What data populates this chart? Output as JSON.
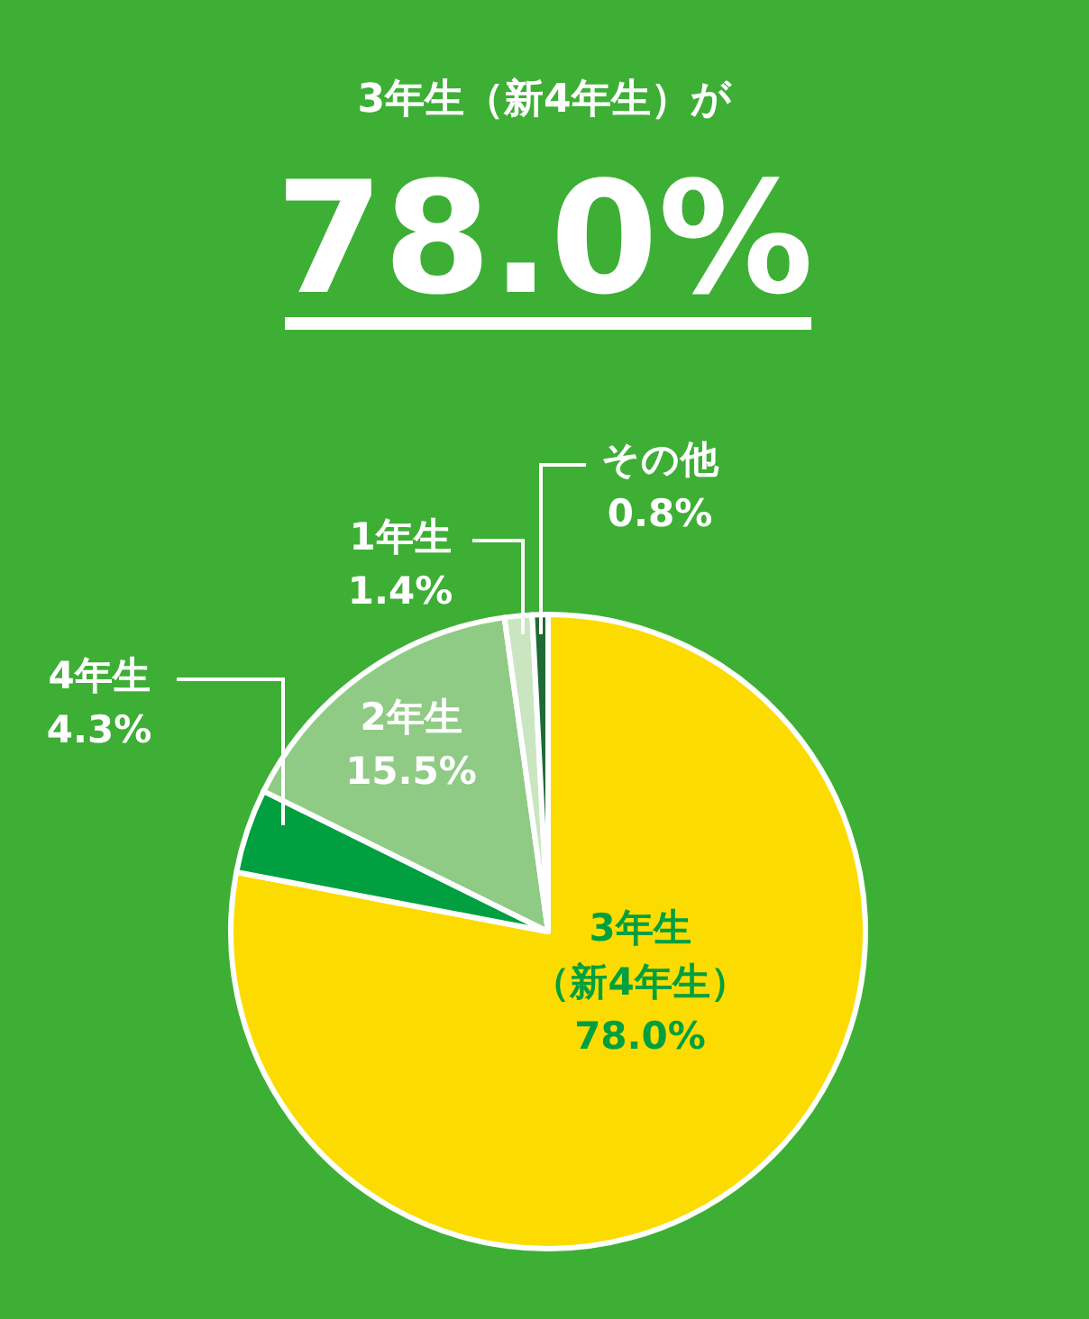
{
  "chart_data": {
    "type": "pie",
    "title": "3年生（新4年生）が",
    "subtitle": "78.0%",
    "categories": [
      "3年生（新4年生）",
      "4年生",
      "2年生",
      "1年生",
      "その他"
    ],
    "values": [
      78.0,
      4.3,
      15.5,
      1.4,
      0.8
    ],
    "value_labels": [
      "78.0%",
      "4.3%",
      "15.5%",
      "1.4%",
      "0.8%"
    ],
    "colors": [
      "#fcdc00",
      "#00a040",
      "#8fcb85",
      "#c9e6c1",
      "#1e6b35"
    ]
  }
}
